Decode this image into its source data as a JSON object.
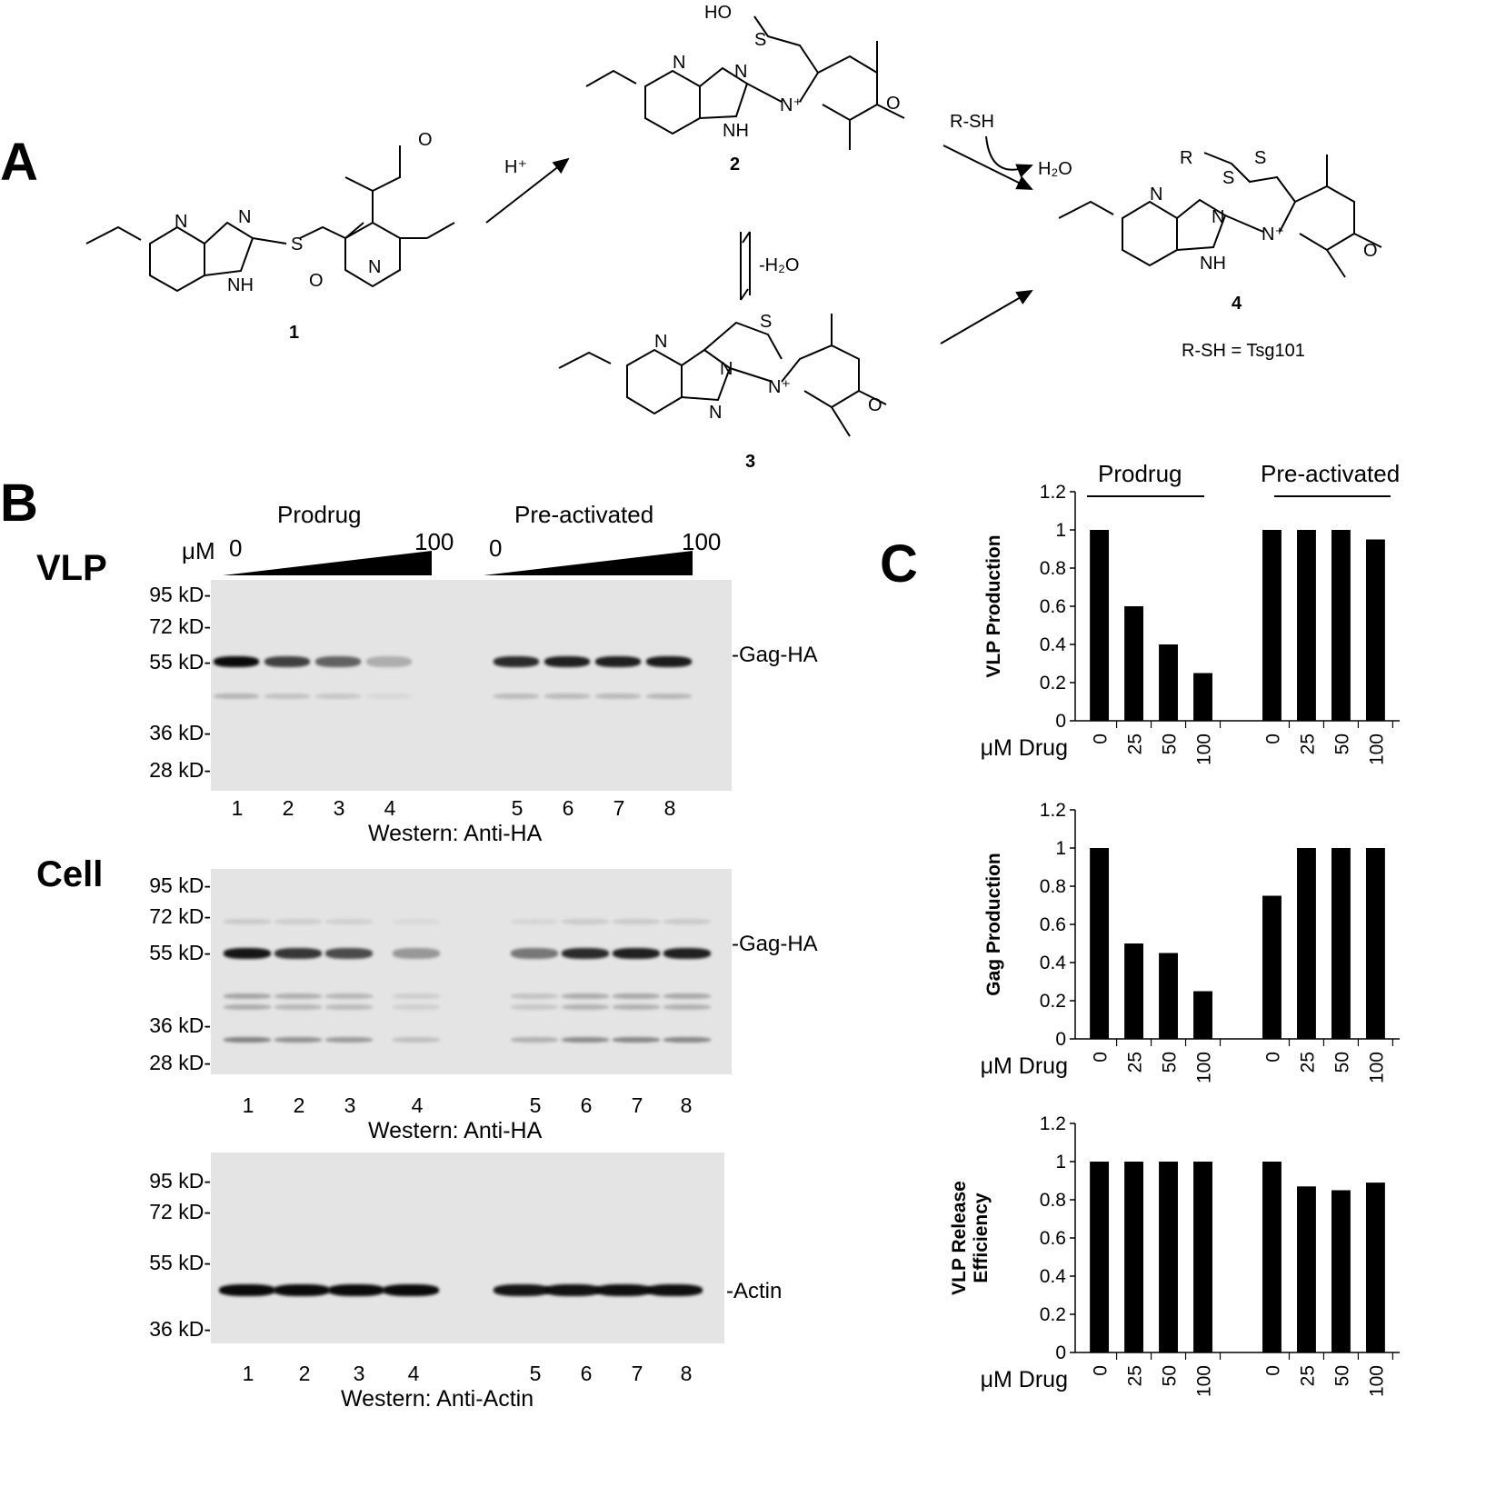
{
  "panels": {
    "a": "A",
    "b": "B",
    "c": "C"
  },
  "scheme": {
    "compound_labels": [
      "1",
      "2",
      "3",
      "4"
    ],
    "h_plus": "H⁺",
    "minus_water": "-H₂O",
    "rsh": "R-SH",
    "water": "H₂O",
    "rsh_def": "R-SH = Tsg101",
    "rs": "R",
    "s": "S",
    "o": "O",
    "n": "N",
    "nh": "NH",
    "nplus": "N⁺",
    "ho": "HO"
  },
  "westerns": {
    "prodrug": "Prodrug",
    "preactivated": "Pre-activated",
    "um": "μM",
    "dose_low": "0",
    "dose_high": "100",
    "vlp": "VLP",
    "cell": "Cell",
    "mw_markers": [
      "95 kD-",
      "72 kD-",
      "55 kD-",
      "36 kD-",
      "28 kD-"
    ],
    "actin_markers": [
      "95 kD-",
      "72 kD-",
      "55 kD-",
      "36 kD-"
    ],
    "lanes": [
      "1",
      "2",
      "3",
      "4",
      "5",
      "6",
      "7",
      "8"
    ],
    "gag_label": "-Gag-HA",
    "actin_label": "-Actin",
    "anti_ha": "Western: Anti-HA",
    "anti_actin": "Western: Anti-Actin",
    "vlp_band_intensity": [
      1.0,
      0.75,
      0.6,
      0.25,
      0.85,
      0.9,
      0.9,
      0.92
    ],
    "cell_band_intensity": [
      0.95,
      0.8,
      0.7,
      0.35,
      0.5,
      0.85,
      0.9,
      0.9
    ]
  },
  "chart_data": [
    {
      "type": "bar",
      "ylabel": "VLP Production",
      "xlabel": "μM Drug",
      "groups": [
        "Prodrug",
        "Pre-activated"
      ],
      "categories": [
        "0",
        "25",
        "50",
        "100",
        "0",
        "25",
        "50",
        "100"
      ],
      "values": [
        1.0,
        0.6,
        0.4,
        0.25,
        1.0,
        1.0,
        1.0,
        0.95
      ],
      "ylim": [
        0,
        1.2
      ],
      "yticks": [
        "0",
        "0.2",
        "0.4",
        "0.6",
        "0.8",
        "1",
        "1.2"
      ]
    },
    {
      "type": "bar",
      "ylabel": "Gag Production",
      "xlabel": "μM Drug",
      "categories": [
        "0",
        "25",
        "50",
        "100",
        "0",
        "25",
        "50",
        "100"
      ],
      "values": [
        1.0,
        0.5,
        0.45,
        0.25,
        0.75,
        1.0,
        1.0,
        1.0
      ],
      "ylim": [
        0,
        1.2
      ],
      "yticks": [
        "0",
        "0.2",
        "0.4",
        "0.6",
        "0.8",
        "1",
        "1.2"
      ]
    },
    {
      "type": "bar",
      "ylabel": [
        "VLP Release",
        "Efficiency"
      ],
      "xlabel": "μM Drug",
      "categories": [
        "0",
        "25",
        "50",
        "100",
        "0",
        "25",
        "50",
        "100"
      ],
      "values": [
        1.0,
        1.0,
        1.0,
        1.0,
        1.0,
        0.87,
        0.85,
        0.89
      ],
      "ylim": [
        0,
        1.2
      ],
      "yticks": [
        "0",
        "0.2",
        "0.4",
        "0.6",
        "0.8",
        "1",
        "1.2"
      ]
    }
  ]
}
